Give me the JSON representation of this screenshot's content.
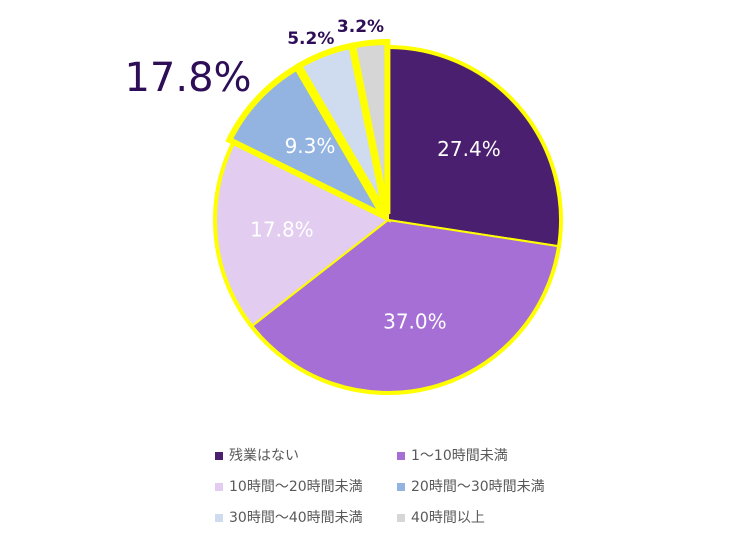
{
  "chart_data": {
    "type": "pie",
    "categories": [
      "残業はない",
      "1〜10時間未満",
      "10時間〜20時間未満",
      "20時間〜30時間未満",
      "30時間〜40時間未満",
      "40時間以上"
    ],
    "values": [
      27.4,
      37.0,
      17.8,
      9.3,
      5.2,
      3.2
    ],
    "value_labels": [
      "27.4%",
      "37.0%",
      "17.8%",
      "9.3%",
      "5.2%",
      "3.2%"
    ],
    "colors": [
      "#4b1f6f",
      "#a66fd6",
      "#e2cdf0",
      "#93b3e0",
      "#cfdcf0",
      "#d6d6d6"
    ],
    "highlight": [
      3,
      4,
      5
    ],
    "outline_color": "#ffff00",
    "annotation": "17.8%",
    "legend": "bottom"
  }
}
